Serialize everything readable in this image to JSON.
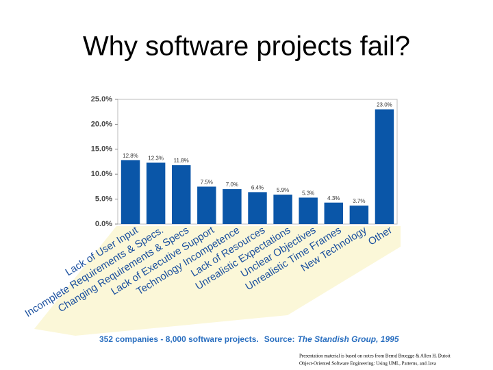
{
  "title": "Why software projects fail?",
  "chart_data": {
    "type": "bar",
    "categories": [
      "Lack of User Input",
      "Incomplete Requirements & Specs.",
      "Changing Requirements & Specs",
      "Lack of Executive Support",
      "Technology Incompetence",
      "Lack of Resources",
      "Unrealistic Expectations",
      "Unclear Objectives",
      "Unrealistic Time Frames",
      "New Technology",
      "Other"
    ],
    "values": [
      12.8,
      12.3,
      11.8,
      7.5,
      7.0,
      6.4,
      5.9,
      5.3,
      4.3,
      3.7,
      23.0
    ],
    "value_labels": [
      "12.8%",
      "12.3%",
      "11.8%",
      "7.5%",
      "7.0%",
      "6.4%",
      "5.9%",
      "5.3%",
      "4.3%",
      "3.7%",
      "23.0%"
    ],
    "color": "#0a56a8",
    "ylim": [
      0,
      25
    ],
    "yticks": [
      {
        "value": 0,
        "label": "0.0%"
      },
      {
        "value": 5,
        "label": "5.0%"
      },
      {
        "value": 10,
        "label": "10.0%"
      },
      {
        "value": 15,
        "label": "15.0%"
      },
      {
        "value": 20,
        "label": "20.0%"
      },
      {
        "value": 25,
        "label": "25.0%"
      }
    ],
    "grid": false,
    "note": "352 companies - 8,000 software projects.",
    "source_label": "Source:",
    "source": "The Standish Group, 1995"
  },
  "footer": [
    "Presentation material is based on notes from Bernd Bruegge & Allen H. Dutoit",
    "Object-Oriented Software Engineering: Using UML, Patterns, and Java"
  ]
}
